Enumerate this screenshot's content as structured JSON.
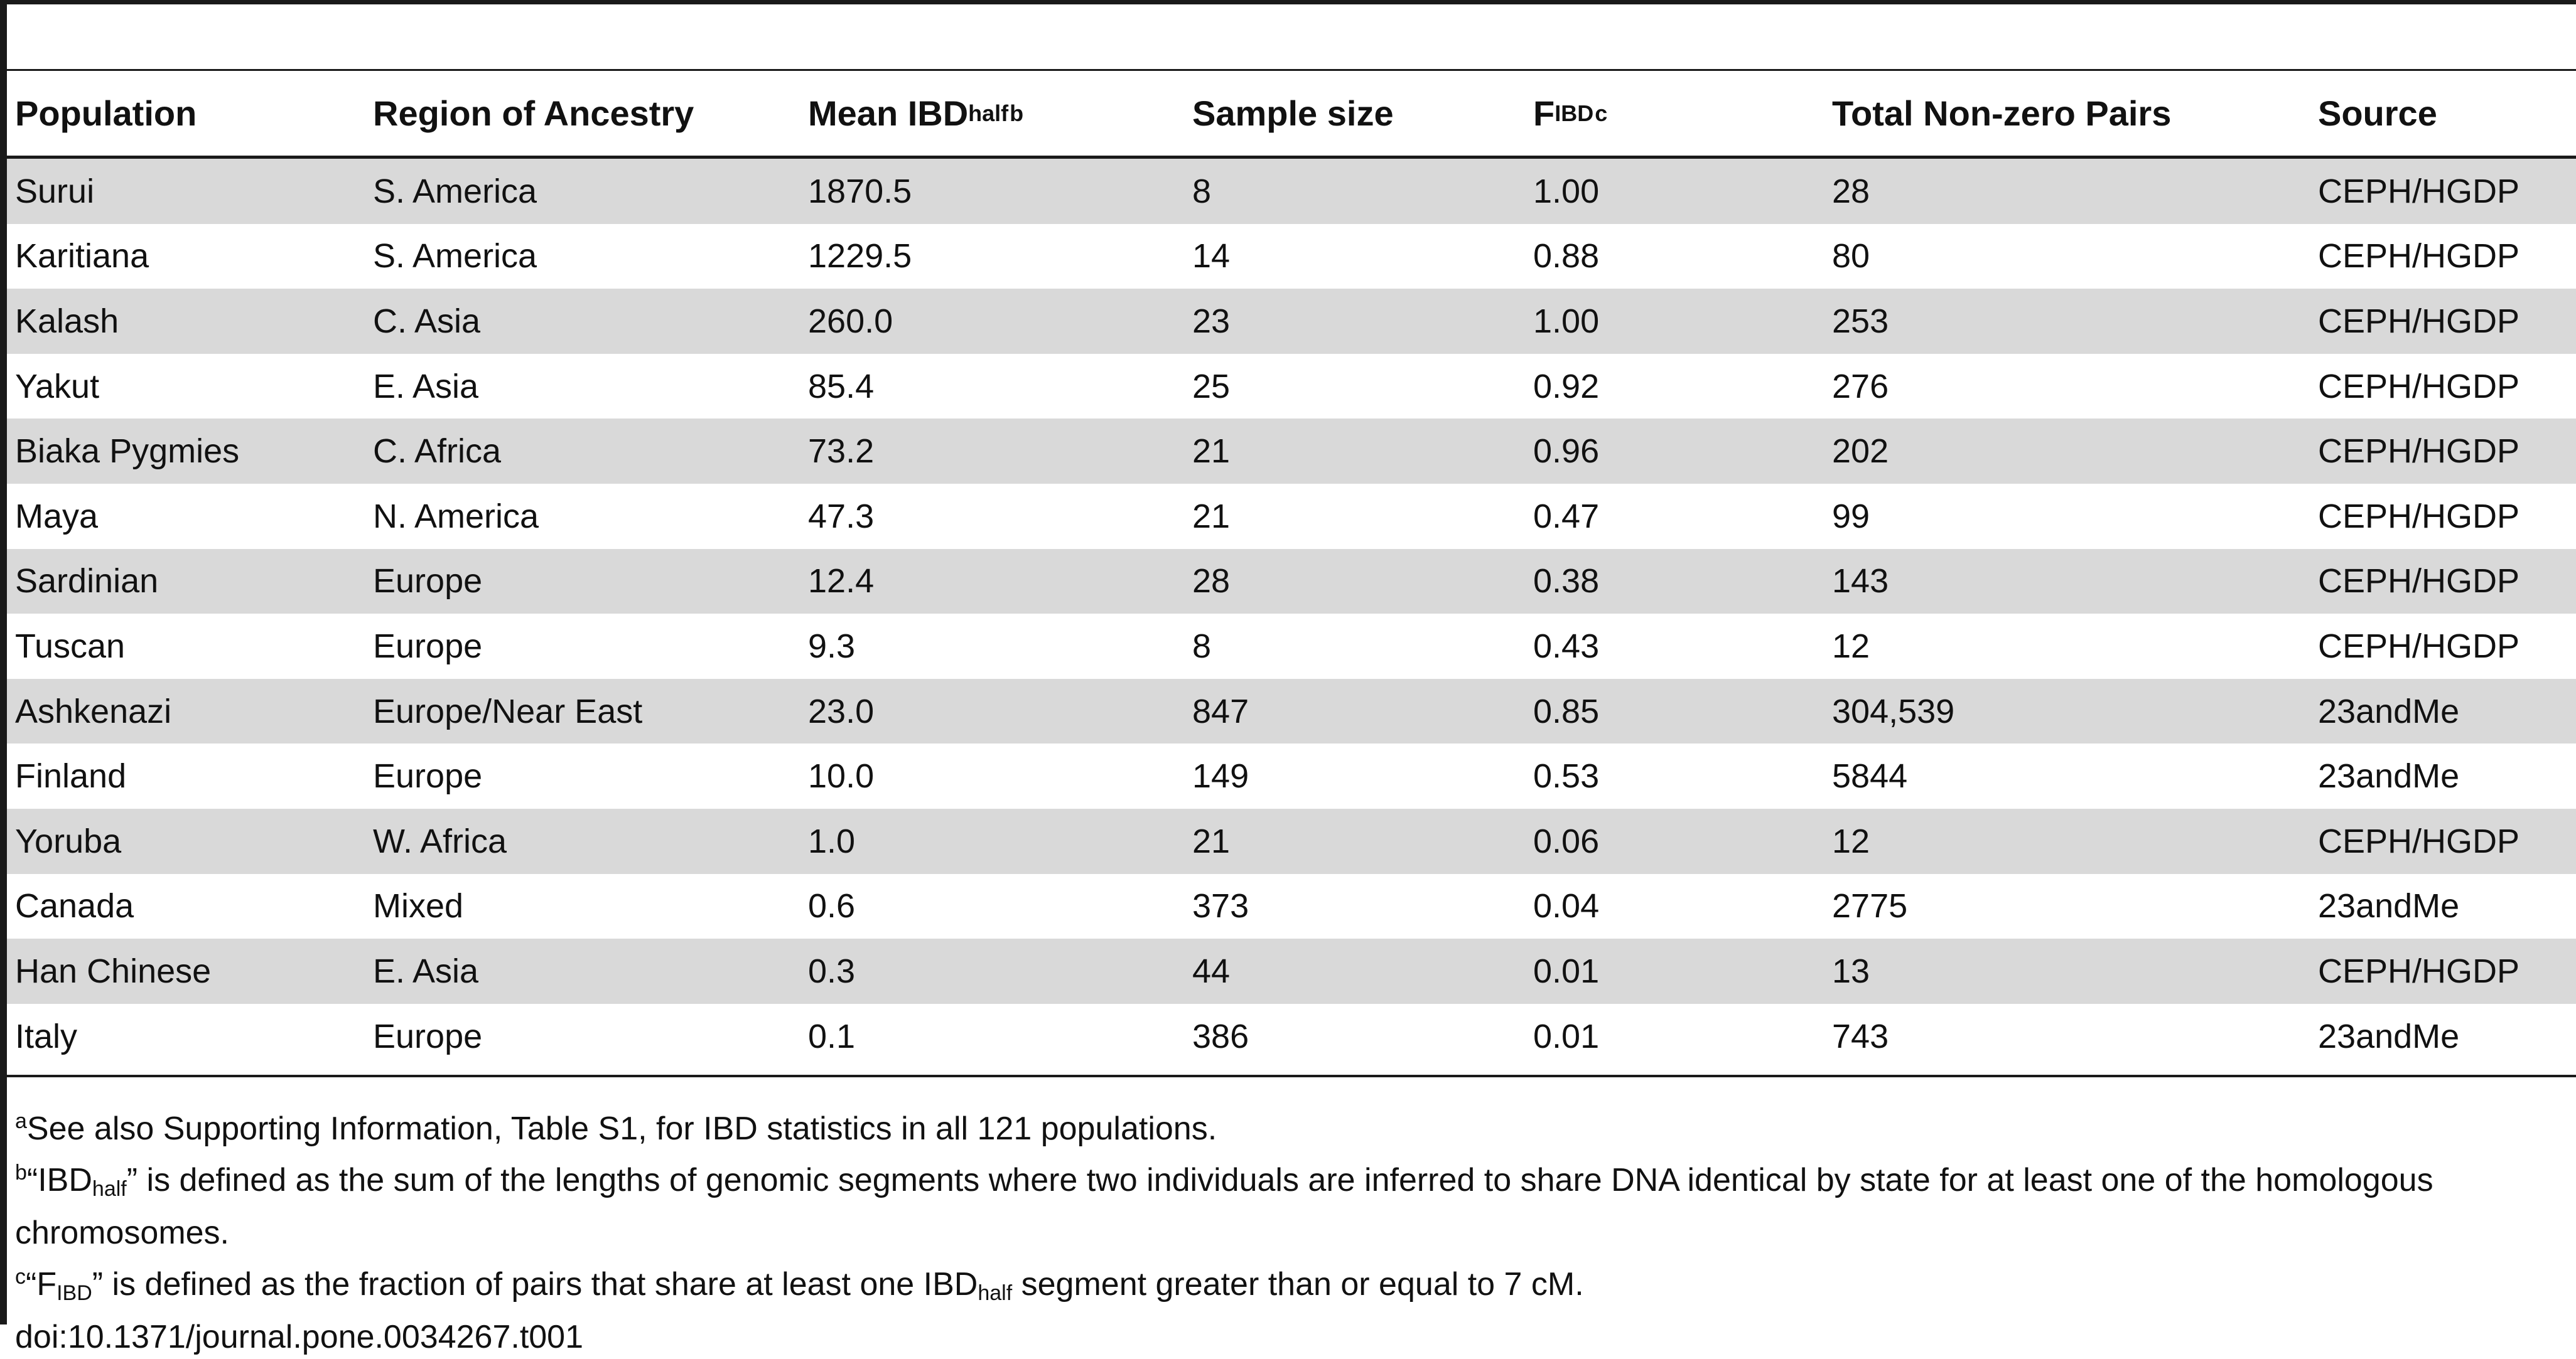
{
  "table": {
    "headers": [
      {
        "text": "Population"
      },
      {
        "text": "Region of Ancestry"
      },
      {
        "text": "Mean IBD",
        "sub": "half",
        "sup": "b"
      },
      {
        "text": "Sample size"
      },
      {
        "text": "F",
        "sub": "IBD",
        "sup": "c"
      },
      {
        "text": "Total Non-zero Pairs"
      },
      {
        "text": "Source"
      }
    ],
    "rows": [
      [
        "Surui",
        "S. America",
        "1870.5",
        "8",
        "1.00",
        "28",
        "CEPH/HGDP"
      ],
      [
        "Karitiana",
        "S. America",
        "1229.5",
        "14",
        "0.88",
        "80",
        "CEPH/HGDP"
      ],
      [
        "Kalash",
        "C. Asia",
        "260.0",
        "23",
        "1.00",
        "253",
        "CEPH/HGDP"
      ],
      [
        "Yakut",
        "E. Asia",
        "85.4",
        "25",
        "0.92",
        "276",
        "CEPH/HGDP"
      ],
      [
        "Biaka Pygmies",
        "C. Africa",
        "73.2",
        "21",
        "0.96",
        "202",
        "CEPH/HGDP"
      ],
      [
        "Maya",
        "N. America",
        "47.3",
        "21",
        "0.47",
        "99",
        "CEPH/HGDP"
      ],
      [
        "Sardinian",
        "Europe",
        "12.4",
        "28",
        "0.38",
        "143",
        "CEPH/HGDP"
      ],
      [
        "Tuscan",
        "Europe",
        "9.3",
        "8",
        "0.43",
        "12",
        "CEPH/HGDP"
      ],
      [
        "Ashkenazi",
        "Europe/Near East",
        "23.0",
        "847",
        "0.85",
        "304,539",
        "23andMe"
      ],
      [
        "Finland",
        "Europe",
        "10.0",
        "149",
        "0.53",
        "5844",
        "23andMe"
      ],
      [
        "Yoruba",
        "W. Africa",
        "1.0",
        "21",
        "0.06",
        "12",
        "CEPH/HGDP"
      ],
      [
        "Canada",
        "Mixed",
        "0.6",
        "373",
        "0.04",
        "2775",
        "23andMe"
      ],
      [
        "Han Chinese",
        "E. Asia",
        "0.3",
        "44",
        "0.01",
        "13",
        "CEPH/HGDP"
      ],
      [
        "Italy",
        "Europe",
        "0.1",
        "386",
        "0.01",
        "743",
        "23andMe"
      ]
    ]
  },
  "footnotes": {
    "a": {
      "mark": "a",
      "text": "See also Supporting Information, Table S1, for IBD statistics in all 121 populations."
    },
    "b": {
      "mark": "b",
      "pre": "“IBD",
      "sub": "half",
      "post": "” is defined as the sum of the lengths of genomic segments where two individuals are inferred to share DNA identical by state for at least one of the homologous chromosomes."
    },
    "c": {
      "mark": "c",
      "pre": "“F",
      "sub": "IBD",
      "mid": "” is defined as the fraction of pairs that share at least one IBD",
      "sub2": "half",
      "post": " segment greater than or equal to 7 cM."
    },
    "doi": "doi:10.1371/journal.pone.0034267.t001"
  }
}
